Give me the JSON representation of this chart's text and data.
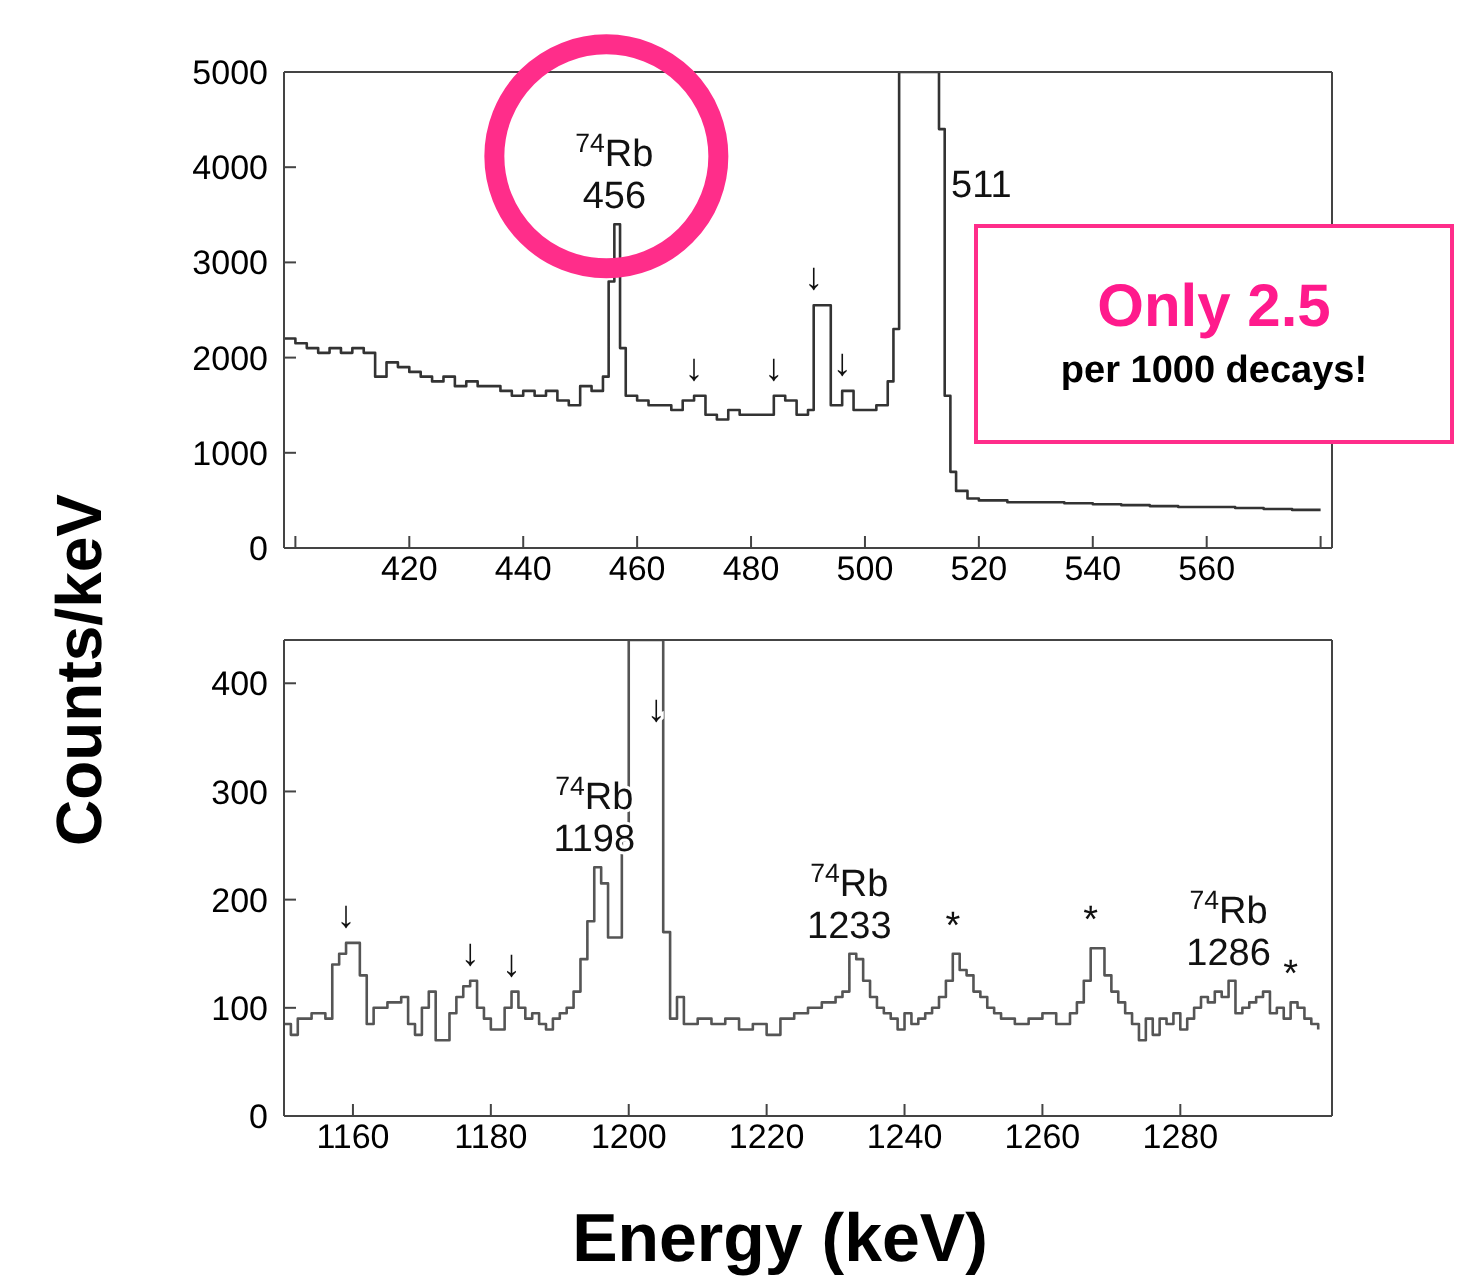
{
  "chart_data": [
    {
      "type": "step",
      "ylabel": "Counts/keV",
      "xlim": [
        398,
        582
      ],
      "ylim": [
        0,
        5000
      ],
      "xticks": [
        {
          "value": 400,
          "label": null
        },
        420,
        440,
        460,
        480,
        500,
        520,
        540,
        560,
        {
          "value": 580,
          "label": null
        }
      ],
      "yticks": [
        0,
        1000,
        2000,
        3000,
        4000,
        5000
      ],
      "grid": false,
      "marker": "none",
      "line_style": "solid",
      "series": [
        {
          "color": "#333333",
          "x": [
            398,
            400,
            402,
            404,
            406,
            408,
            410,
            412,
            414,
            416,
            418,
            420,
            422,
            424,
            426,
            428,
            430,
            432,
            434,
            436,
            438,
            440,
            442,
            444,
            446,
            448,
            450,
            452,
            454,
            455,
            456,
            457,
            458,
            460,
            462,
            464,
            466,
            468,
            470,
            472,
            474,
            476,
            478,
            480,
            482,
            484,
            486,
            488,
            490,
            491,
            494,
            496,
            498,
            500,
            502,
            504,
            505,
            506,
            513,
            514,
            515,
            516,
            518,
            520,
            525,
            530,
            535,
            540,
            545,
            550,
            555,
            560,
            565,
            570,
            575,
            580
          ],
          "values": [
            2200,
            2150,
            2100,
            2050,
            2100,
            2050,
            2100,
            2050,
            1800,
            1950,
            1900,
            1850,
            1800,
            1750,
            1800,
            1700,
            1750,
            1700,
            1700,
            1650,
            1600,
            1650,
            1600,
            1650,
            1550,
            1500,
            1700,
            1650,
            1800,
            2800,
            3400,
            2100,
            1600,
            1550,
            1500,
            1500,
            1450,
            1550,
            1600,
            1400,
            1350,
            1450,
            1400,
            1400,
            1400,
            1600,
            1550,
            1400,
            1450,
            2550,
            1500,
            1650,
            1450,
            1450,
            1500,
            1750,
            2300,
            5000,
            4400,
            1600,
            800,
            600,
            520,
            500,
            480,
            480,
            470,
            460,
            450,
            440,
            430,
            430,
            420,
            410,
            400,
            400
          ]
        }
      ],
      "annotations": [
        {
          "text": "$^{74}$Rb\n456",
          "x": 456,
          "y": 3400
        },
        {
          "text": "511",
          "x": 513,
          "y": 4400
        },
        {
          "text": "↓",
          "x": 470,
          "y": 1600
        },
        {
          "text": "↓",
          "x": 484,
          "y": 1600
        },
        {
          "text": "↓",
          "x": 491,
          "y": 2550
        },
        {
          "text": "↓",
          "x": 496,
          "y": 1650
        },
        "Only 2.5",
        "per 1000 decays!"
      ]
    },
    {
      "type": "step",
      "xlabel": "Energy (keV)",
      "xlim": [
        1150,
        1302
      ],
      "ylim": [
        0,
        440
      ],
      "xticks": [
        1160,
        1180,
        1200,
        1220,
        1240,
        1260,
        1280
      ],
      "yticks": [
        0,
        100,
        200,
        300,
        400
      ],
      "grid": false,
      "marker": "none",
      "line_style": "solid",
      "series": [
        {
          "color": "#555555",
          "x": [
            1150,
            1151,
            1152,
            1154,
            1156,
            1157,
            1158,
            1159,
            1161,
            1162,
            1163,
            1165,
            1167,
            1168,
            1169,
            1170,
            1171,
            1172,
            1174,
            1175,
            1176,
            1177,
            1178,
            1179,
            1180,
            1182,
            1183,
            1184,
            1185,
            1186,
            1187,
            1188,
            1189,
            1190,
            1191,
            1192,
            1193,
            1194,
            1195,
            1196,
            1197,
            1199,
            1200,
            1205,
            1206,
            1207,
            1208,
            1210,
            1212,
            1214,
            1216,
            1218,
            1220,
            1222,
            1224,
            1226,
            1228,
            1230,
            1231,
            1232,
            1233,
            1234,
            1235,
            1236,
            1237,
            1238,
            1239,
            1240,
            1241,
            1242,
            1243,
            1244,
            1245,
            1246,
            1247,
            1248,
            1249,
            1250,
            1251,
            1252,
            1253,
            1254,
            1256,
            1258,
            1260,
            1262,
            1264,
            1265,
            1266,
            1267,
            1269,
            1270,
            1271,
            1272,
            1273,
            1274,
            1275,
            1276,
            1277,
            1278,
            1279,
            1280,
            1281,
            1282,
            1283,
            1284,
            1285,
            1286,
            1287,
            1288,
            1289,
            1290,
            1291,
            1292,
            1293,
            1294,
            1295,
            1296,
            1297,
            1298,
            1299,
            1300
          ],
          "values": [
            85,
            75,
            90,
            95,
            90,
            140,
            150,
            160,
            130,
            85,
            100,
            105,
            110,
            85,
            75,
            100,
            115,
            70,
            95,
            110,
            120,
            125,
            100,
            90,
            80,
            100,
            115,
            100,
            90,
            95,
            85,
            80,
            90,
            95,
            100,
            115,
            145,
            180,
            230,
            215,
            165,
            255,
            440,
            170,
            90,
            110,
            85,
            90,
            85,
            90,
            80,
            85,
            75,
            90,
            95,
            100,
            105,
            110,
            115,
            150,
            145,
            125,
            110,
            100,
            95,
            90,
            80,
            95,
            85,
            90,
            95,
            100,
            110,
            125,
            150,
            135,
            130,
            115,
            110,
            100,
            95,
            90,
            85,
            90,
            95,
            85,
            95,
            105,
            125,
            155,
            130,
            115,
            105,
            95,
            85,
            70,
            90,
            75,
            90,
            85,
            95,
            80,
            90,
            100,
            110,
            105,
            115,
            110,
            125,
            95,
            100,
            105,
            110,
            115,
            95,
            100,
            90,
            105,
            100,
            90,
            85,
            80
          ]
        }
      ],
      "annotations": [
        {
          "text": "$^{74}$Rb\n1198",
          "x": 1195,
          "y": 230
        },
        {
          "text": "↓",
          "x": 1159,
          "y": 160
        },
        {
          "text": "↓",
          "x": 1177,
          "y": 125
        },
        {
          "text": "↓",
          "x": 1183,
          "y": 115
        },
        {
          "text": "↓",
          "x": 1204,
          "y": 350
        },
        {
          "text": "$^{74}$Rb\n1233",
          "x": 1232,
          "y": 150
        },
        {
          "text": "*",
          "x": 1247,
          "y": 150
        },
        {
          "text": "*",
          "x": 1267,
          "y": 155
        },
        {
          "text": "$^{74}$Rb\n1286",
          "x": 1287,
          "y": 125
        },
        {
          "text": "*",
          "x": 1296,
          "y": 105
        }
      ]
    }
  ]
}
